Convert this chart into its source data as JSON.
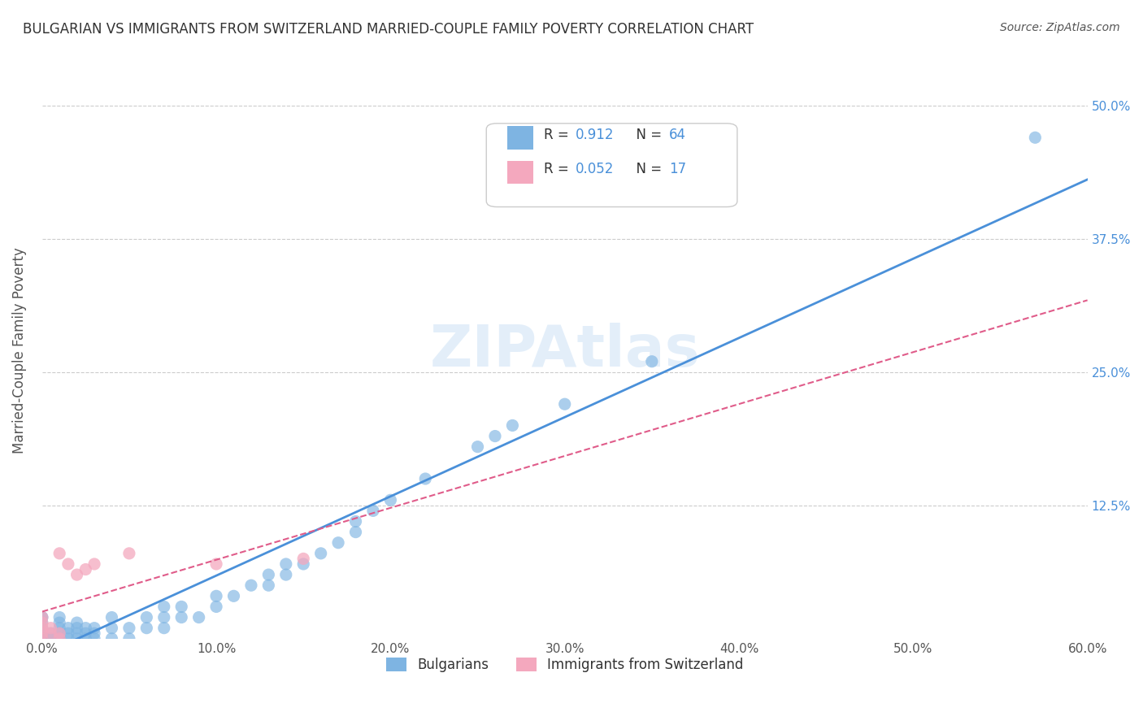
{
  "title": "BULGARIAN VS IMMIGRANTS FROM SWITZERLAND MARRIED-COUPLE FAMILY POVERTY CORRELATION CHART",
  "source": "Source: ZipAtlas.com",
  "ylabel": "Married-Couple Family Poverty",
  "xlabel": "",
  "xlim": [
    0.0,
    0.6
  ],
  "ylim": [
    0.0,
    0.54
  ],
  "xticks": [
    0.0,
    0.1,
    0.2,
    0.3,
    0.4,
    0.5,
    0.6
  ],
  "xticklabels": [
    "0.0%",
    "10.0%",
    "20.0%",
    "30.0%",
    "40.0%",
    "50.0%",
    "60.0%"
  ],
  "yticks": [
    0.0,
    0.125,
    0.25,
    0.375,
    0.5
  ],
  "yticklabels": [
    "",
    "12.5%",
    "25.0%",
    "37.5%",
    "50.0%"
  ],
  "bg_color": "#ffffff",
  "plot_bg_color": "#ffffff",
  "grid_color": "#cccccc",
  "blue_color": "#7eb4e2",
  "pink_color": "#f4a8be",
  "blue_line_color": "#4a90d9",
  "pink_line_color": "#e05c8a",
  "R_blue": 0.912,
  "N_blue": 64,
  "R_pink": 0.052,
  "N_pink": 17,
  "blue_scatter_x": [
    0.0,
    0.0,
    0.0,
    0.0,
    0.0,
    0.0,
    0.0,
    0.0,
    0.0,
    0.005,
    0.005,
    0.01,
    0.01,
    0.01,
    0.01,
    0.01,
    0.015,
    0.015,
    0.015,
    0.02,
    0.02,
    0.02,
    0.02,
    0.025,
    0.025,
    0.025,
    0.03,
    0.03,
    0.03,
    0.04,
    0.04,
    0.04,
    0.05,
    0.05,
    0.06,
    0.06,
    0.07,
    0.07,
    0.07,
    0.08,
    0.08,
    0.09,
    0.1,
    0.1,
    0.11,
    0.12,
    0.13,
    0.13,
    0.14,
    0.14,
    0.15,
    0.16,
    0.17,
    0.18,
    0.18,
    0.19,
    0.2,
    0.22,
    0.25,
    0.26,
    0.27,
    0.3,
    0.35,
    0.57
  ],
  "blue_scatter_y": [
    0.0,
    0.0,
    0.0,
    0.0,
    0.005,
    0.01,
    0.015,
    0.02,
    0.02,
    0.0,
    0.005,
    0.0,
    0.005,
    0.01,
    0.015,
    0.02,
    0.0,
    0.005,
    0.01,
    0.0,
    0.005,
    0.01,
    0.015,
    0.0,
    0.005,
    0.01,
    0.0,
    0.005,
    0.01,
    0.0,
    0.01,
    0.02,
    0.0,
    0.01,
    0.01,
    0.02,
    0.01,
    0.02,
    0.03,
    0.02,
    0.03,
    0.02,
    0.03,
    0.04,
    0.04,
    0.05,
    0.05,
    0.06,
    0.06,
    0.07,
    0.07,
    0.08,
    0.09,
    0.1,
    0.11,
    0.12,
    0.13,
    0.15,
    0.18,
    0.19,
    0.2,
    0.22,
    0.26,
    0.47
  ],
  "pink_scatter_x": [
    0.0,
    0.0,
    0.0,
    0.0,
    0.0,
    0.005,
    0.005,
    0.01,
    0.01,
    0.01,
    0.015,
    0.02,
    0.025,
    0.03,
    0.05,
    0.1,
    0.15
  ],
  "pink_scatter_y": [
    0.0,
    0.005,
    0.01,
    0.015,
    0.02,
    0.005,
    0.01,
    0.0,
    0.005,
    0.08,
    0.07,
    0.06,
    0.065,
    0.07,
    0.08,
    0.07,
    0.075
  ],
  "watermark": "ZIPAtlas",
  "watermark_color": "#c8dff5",
  "legend_R_color": "#4a90d9",
  "legend_N_color": "#4a90d9"
}
